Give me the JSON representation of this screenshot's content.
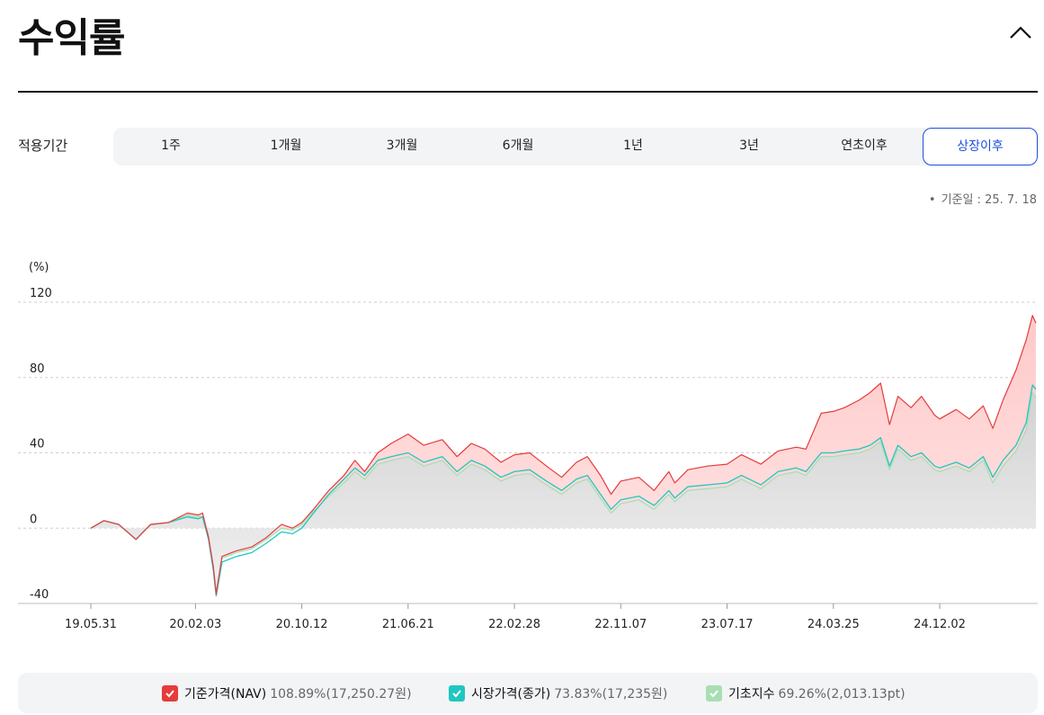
{
  "header": {
    "title": "수익률",
    "collapse_icon": "chevron-up-icon"
  },
  "period": {
    "label": "적용기간",
    "tabs": [
      "1주",
      "1개월",
      "3개월",
      "6개월",
      "1년",
      "3년",
      "연초이후",
      "상장이후"
    ],
    "active_index": 7
  },
  "base_date": "기준일 : 25. 7. 18",
  "colors": {
    "nav": "#e63b3b",
    "market": "#1fc7c0",
    "index": "#a8dfb2",
    "accent": "#1d4fd8"
  },
  "legend": [
    {
      "label": "기준가격(NAV)",
      "value": "108.89%(17,250.27원)",
      "color": "#e63b3b"
    },
    {
      "label": "시장가격(종가)",
      "value": "73.83%(17,235원)",
      "color": "#1fc7c0"
    },
    {
      "label": "기초지수",
      "value": "69.26%(2,013.13pt)",
      "color": "#a8dfb2"
    }
  ],
  "chart_data": {
    "type": "area",
    "ylabel": "(%)",
    "ylim": [
      -40,
      120
    ],
    "yticks": [
      120,
      80,
      40,
      0,
      -40
    ],
    "x_tick_labels": [
      "19.05.31",
      "20.02.03",
      "20.10.12",
      "21.06.21",
      "22.02.28",
      "22.11.07",
      "23.07.17",
      "24.03.25",
      "24.12.02"
    ],
    "x_tick_dates": [
      "2019-05-31",
      "2020-02-03",
      "2020-10-12",
      "2021-06-21",
      "2022-02-28",
      "2022-11-07",
      "2023-07-17",
      "2024-03-25",
      "2024-12-02"
    ],
    "x_range": [
      "2019-05-31",
      "2025-07-18"
    ],
    "series": [
      {
        "name": "기준가격(NAV)",
        "color": "#e63b3b",
        "points": [
          [
            "2019-05-31",
            0
          ],
          [
            "2019-07-01",
            4
          ],
          [
            "2019-08-05",
            2
          ],
          [
            "2019-09-15",
            -6
          ],
          [
            "2019-10-20",
            2
          ],
          [
            "2019-12-01",
            3
          ],
          [
            "2020-01-15",
            8
          ],
          [
            "2020-02-10",
            7
          ],
          [
            "2020-02-20",
            8
          ],
          [
            "2020-03-05",
            -5
          ],
          [
            "2020-03-16",
            -20
          ],
          [
            "2020-03-23",
            -35
          ],
          [
            "2020-04-06",
            -15
          ],
          [
            "2020-05-10",
            -12
          ],
          [
            "2020-06-15",
            -10
          ],
          [
            "2020-07-20",
            -5
          ],
          [
            "2020-08-25",
            2
          ],
          [
            "2020-09-20",
            0
          ],
          [
            "2020-10-12",
            3
          ],
          [
            "2020-11-09",
            10
          ],
          [
            "2020-12-15",
            20
          ],
          [
            "2021-01-20",
            28
          ],
          [
            "2021-02-15",
            36
          ],
          [
            "2021-03-10",
            30
          ],
          [
            "2021-04-10",
            40
          ],
          [
            "2021-05-12",
            45
          ],
          [
            "2021-06-21",
            50
          ],
          [
            "2021-07-28",
            44
          ],
          [
            "2021-09-10",
            47
          ],
          [
            "2021-10-15",
            38
          ],
          [
            "2021-11-18",
            45
          ],
          [
            "2021-12-20",
            42
          ],
          [
            "2022-01-27",
            35
          ],
          [
            "2022-02-28",
            39
          ],
          [
            "2022-04-05",
            40
          ],
          [
            "2022-05-15",
            33
          ],
          [
            "2022-06-20",
            27
          ],
          [
            "2022-07-25",
            35
          ],
          [
            "2022-08-20",
            38
          ],
          [
            "2022-09-20",
            28
          ],
          [
            "2022-10-15",
            18
          ],
          [
            "2022-11-07",
            25
          ],
          [
            "2022-12-20",
            27
          ],
          [
            "2023-01-25",
            20
          ],
          [
            "2023-03-01",
            30
          ],
          [
            "2023-03-15",
            24
          ],
          [
            "2023-04-15",
            31
          ],
          [
            "2023-06-01",
            33
          ],
          [
            "2023-07-17",
            34
          ],
          [
            "2023-08-20",
            39
          ],
          [
            "2023-10-05",
            34
          ],
          [
            "2023-11-15",
            41
          ],
          [
            "2023-12-28",
            43
          ],
          [
            "2024-01-20",
            42
          ],
          [
            "2024-02-25",
            61
          ],
          [
            "2024-03-25",
            62
          ],
          [
            "2024-04-20",
            64
          ],
          [
            "2024-05-25",
            68
          ],
          [
            "2024-06-20",
            72
          ],
          [
            "2024-07-15",
            77
          ],
          [
            "2024-08-05",
            55
          ],
          [
            "2024-08-25",
            70
          ],
          [
            "2024-09-25",
            64
          ],
          [
            "2024-10-20",
            70
          ],
          [
            "2024-11-20",
            60
          ],
          [
            "2024-12-02",
            58
          ],
          [
            "2025-01-10",
            63
          ],
          [
            "2025-02-10",
            58
          ],
          [
            "2025-03-15",
            65
          ],
          [
            "2025-04-07",
            53
          ],
          [
            "2025-05-01",
            68
          ],
          [
            "2025-06-01",
            84
          ],
          [
            "2025-06-25",
            100
          ],
          [
            "2025-07-10",
            113
          ],
          [
            "2025-07-18",
            108.89
          ]
        ]
      },
      {
        "name": "시장가격(종가)",
        "color": "#1fc7c0",
        "points": [
          [
            "2019-05-31",
            0
          ],
          [
            "2019-07-01",
            4
          ],
          [
            "2019-08-05",
            2
          ],
          [
            "2019-09-15",
            -6
          ],
          [
            "2019-10-20",
            2
          ],
          [
            "2019-12-01",
            3
          ],
          [
            "2020-01-15",
            6
          ],
          [
            "2020-02-10",
            5
          ],
          [
            "2020-02-20",
            6
          ],
          [
            "2020-03-05",
            -6
          ],
          [
            "2020-03-16",
            -22
          ],
          [
            "2020-03-23",
            -36
          ],
          [
            "2020-04-06",
            -18
          ],
          [
            "2020-05-10",
            -15
          ],
          [
            "2020-06-15",
            -13
          ],
          [
            "2020-07-20",
            -8
          ],
          [
            "2020-08-25",
            -2
          ],
          [
            "2020-09-20",
            -3
          ],
          [
            "2020-10-12",
            0
          ],
          [
            "2020-11-09",
            8
          ],
          [
            "2020-12-15",
            18
          ],
          [
            "2021-01-20",
            26
          ],
          [
            "2021-02-15",
            32
          ],
          [
            "2021-03-10",
            28
          ],
          [
            "2021-04-10",
            36
          ],
          [
            "2021-05-12",
            38
          ],
          [
            "2021-06-21",
            40
          ],
          [
            "2021-07-28",
            35
          ],
          [
            "2021-09-10",
            38
          ],
          [
            "2021-10-15",
            30
          ],
          [
            "2021-11-18",
            36
          ],
          [
            "2021-12-20",
            33
          ],
          [
            "2022-01-27",
            27
          ],
          [
            "2022-02-28",
            30
          ],
          [
            "2022-04-05",
            31
          ],
          [
            "2022-05-15",
            25
          ],
          [
            "2022-06-20",
            20
          ],
          [
            "2022-07-25",
            26
          ],
          [
            "2022-08-20",
            28
          ],
          [
            "2022-09-20",
            18
          ],
          [
            "2022-10-15",
            10
          ],
          [
            "2022-11-07",
            15
          ],
          [
            "2022-12-20",
            17
          ],
          [
            "2023-01-25",
            12
          ],
          [
            "2023-03-01",
            20
          ],
          [
            "2023-03-15",
            16
          ],
          [
            "2023-04-15",
            22
          ],
          [
            "2023-06-01",
            23
          ],
          [
            "2023-07-17",
            24
          ],
          [
            "2023-08-20",
            28
          ],
          [
            "2023-10-05",
            23
          ],
          [
            "2023-11-15",
            30
          ],
          [
            "2023-12-28",
            32
          ],
          [
            "2024-01-20",
            30
          ],
          [
            "2024-02-25",
            40
          ],
          [
            "2024-03-25",
            40
          ],
          [
            "2024-04-20",
            41
          ],
          [
            "2024-05-25",
            42
          ],
          [
            "2024-06-20",
            44
          ],
          [
            "2024-07-15",
            48
          ],
          [
            "2024-08-05",
            33
          ],
          [
            "2024-08-25",
            44
          ],
          [
            "2024-09-25",
            38
          ],
          [
            "2024-10-20",
            40
          ],
          [
            "2024-11-20",
            33
          ],
          [
            "2024-12-02",
            32
          ],
          [
            "2025-01-10",
            35
          ],
          [
            "2025-02-10",
            32
          ],
          [
            "2025-03-15",
            38
          ],
          [
            "2025-04-07",
            27
          ],
          [
            "2025-05-01",
            36
          ],
          [
            "2025-06-01",
            44
          ],
          [
            "2025-06-25",
            56
          ],
          [
            "2025-07-10",
            76
          ],
          [
            "2025-07-18",
            73.83
          ]
        ]
      },
      {
        "name": "기초지수",
        "color": "#a8dfb2",
        "points": [
          [
            "2019-05-31",
            0
          ],
          [
            "2019-07-01",
            4
          ],
          [
            "2019-08-05",
            2
          ],
          [
            "2019-09-15",
            -6
          ],
          [
            "2019-10-20",
            2
          ],
          [
            "2019-12-01",
            3
          ],
          [
            "2020-01-15",
            7
          ],
          [
            "2020-02-10",
            6
          ],
          [
            "2020-02-20",
            6
          ],
          [
            "2020-03-05",
            -4
          ],
          [
            "2020-03-16",
            -20
          ],
          [
            "2020-03-23",
            -34
          ],
          [
            "2020-04-06",
            -16
          ],
          [
            "2020-05-10",
            -13
          ],
          [
            "2020-06-15",
            -11
          ],
          [
            "2020-07-20",
            -6
          ],
          [
            "2020-08-25",
            0
          ],
          [
            "2020-09-20",
            -1
          ],
          [
            "2020-10-12",
            2
          ],
          [
            "2020-11-09",
            9
          ],
          [
            "2020-12-15",
            17
          ],
          [
            "2021-01-20",
            24
          ],
          [
            "2021-02-15",
            30
          ],
          [
            "2021-03-10",
            26
          ],
          [
            "2021-04-10",
            34
          ],
          [
            "2021-05-12",
            36
          ],
          [
            "2021-06-21",
            38
          ],
          [
            "2021-07-28",
            33
          ],
          [
            "2021-09-10",
            36
          ],
          [
            "2021-10-15",
            28
          ],
          [
            "2021-11-18",
            34
          ],
          [
            "2021-12-20",
            31
          ],
          [
            "2022-01-27",
            25
          ],
          [
            "2022-02-28",
            28
          ],
          [
            "2022-04-05",
            29
          ],
          [
            "2022-05-15",
            23
          ],
          [
            "2022-06-20",
            18
          ],
          [
            "2022-07-25",
            24
          ],
          [
            "2022-08-20",
            26
          ],
          [
            "2022-09-20",
            16
          ],
          [
            "2022-10-15",
            8
          ],
          [
            "2022-11-07",
            13
          ],
          [
            "2022-12-20",
            15
          ],
          [
            "2023-01-25",
            10
          ],
          [
            "2023-03-01",
            18
          ],
          [
            "2023-03-15",
            14
          ],
          [
            "2023-04-15",
            20
          ],
          [
            "2023-06-01",
            21
          ],
          [
            "2023-07-17",
            22
          ],
          [
            "2023-08-20",
            26
          ],
          [
            "2023-10-05",
            21
          ],
          [
            "2023-11-15",
            28
          ],
          [
            "2023-12-28",
            30
          ],
          [
            "2024-01-20",
            28
          ],
          [
            "2024-02-25",
            38
          ],
          [
            "2024-03-25",
            38
          ],
          [
            "2024-04-20",
            39
          ],
          [
            "2024-05-25",
            40
          ],
          [
            "2024-06-20",
            42
          ],
          [
            "2024-07-15",
            46
          ],
          [
            "2024-08-05",
            31
          ],
          [
            "2024-08-25",
            42
          ],
          [
            "2024-09-25",
            36
          ],
          [
            "2024-10-20",
            38
          ],
          [
            "2024-11-20",
            31
          ],
          [
            "2024-12-02",
            30
          ],
          [
            "2025-01-10",
            33
          ],
          [
            "2025-02-10",
            30
          ],
          [
            "2025-03-15",
            36
          ],
          [
            "2025-04-07",
            24
          ],
          [
            "2025-05-01",
            33
          ],
          [
            "2025-06-01",
            41
          ],
          [
            "2025-06-25",
            52
          ],
          [
            "2025-07-10",
            72
          ],
          [
            "2025-07-18",
            69.26
          ]
        ]
      }
    ],
    "grid": true
  }
}
